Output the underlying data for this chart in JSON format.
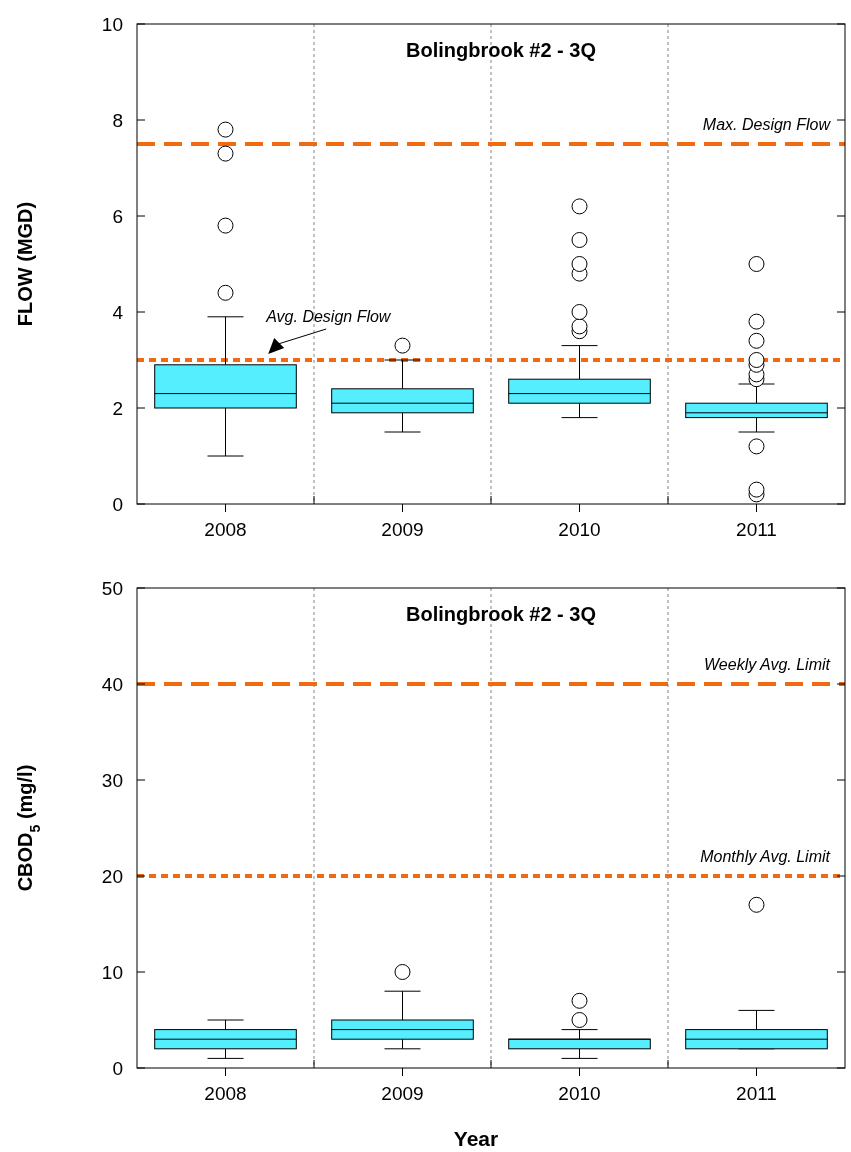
{
  "chart_data": [
    {
      "type": "box",
      "title": "Bolingbrook #2 - 3Q",
      "ylabel": "FLOW (MGD)",
      "categories": [
        "2008",
        "2009",
        "2010",
        "2011"
      ],
      "color": "#55eeff",
      "ylim": [
        0,
        10
      ],
      "yticks": [
        0,
        2,
        4,
        6,
        8,
        10
      ],
      "grid": "x",
      "marker": "circle",
      "boxes": [
        {
          "low": 1.0,
          "q1": 2.0,
          "median": 2.3,
          "q3": 2.9,
          "high": 3.9,
          "outliers": [
            4.4,
            5.8,
            7.3,
            7.8
          ]
        },
        {
          "low": 1.5,
          "q1": 1.9,
          "median": 2.1,
          "q3": 2.4,
          "high": 3.0,
          "outliers": [
            3.3
          ]
        },
        {
          "low": 1.8,
          "q1": 2.1,
          "median": 2.3,
          "q3": 2.6,
          "high": 3.3,
          "outliers": [
            3.6,
            3.7,
            4.0,
            4.8,
            5.0,
            5.5,
            6.2
          ]
        },
        {
          "low": 1.5,
          "q1": 1.8,
          "median": 1.9,
          "q3": 2.1,
          "high": 2.5,
          "outliers": [
            0.2,
            0.3,
            1.2,
            2.6,
            2.7,
            2.9,
            3.0,
            3.4,
            3.8,
            5.0
          ]
        }
      ],
      "ref_lines": [
        {
          "axis": "y",
          "value": 7.5,
          "label": "Max. Design Flow",
          "color": "#f26a10",
          "line_style": "dashed"
        },
        {
          "axis": "y",
          "value": 3.0,
          "label": "Avg. Design Flow",
          "color": "#f26a10",
          "line_style": "dotted"
        }
      ]
    },
    {
      "type": "box",
      "title": "Bolingbrook #2 - 3Q",
      "xlabel": "Year",
      "ylabel": "CBOD$_{5}$ (mg/l)",
      "categories": [
        "2008",
        "2009",
        "2010",
        "2011"
      ],
      "color": "#55eeff",
      "ylim": [
        0,
        50
      ],
      "yticks": [
        0,
        10,
        20,
        30,
        40,
        50
      ],
      "grid": "x",
      "marker": "circle",
      "boxes": [
        {
          "low": 1,
          "q1": 2,
          "median": 3,
          "q3": 4,
          "high": 5
        },
        {
          "low": 2,
          "q1": 3,
          "median": 4,
          "q3": 5,
          "high": 8,
          "outliers": [
            10
          ]
        },
        {
          "low": 1,
          "q1": 2,
          "median": 3,
          "q3": 3,
          "high": 4,
          "outliers": [
            5,
            7
          ]
        },
        {
          "low": 2,
          "q1": 2,
          "median": 3,
          "q3": 4,
          "high": 6,
          "outliers": [
            17
          ]
        }
      ],
      "ref_lines": [
        {
          "axis": "y",
          "value": 40,
          "label": "Weekly Avg. Limit",
          "color": "#f26a10",
          "line_style": "dashed"
        },
        {
          "axis": "y",
          "value": 20,
          "label": "Monthly Avg. Limit",
          "color": "#f26a10",
          "line_style": "dotted"
        }
      ]
    }
  ]
}
